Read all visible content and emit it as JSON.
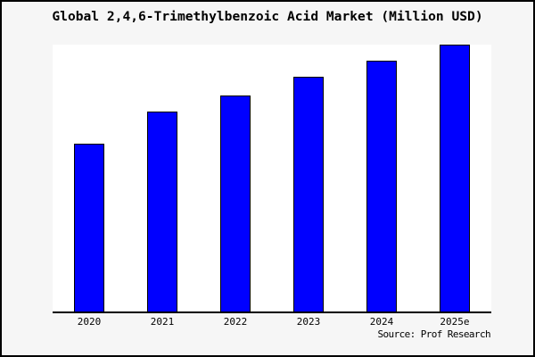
{
  "figure": {
    "background_color": "#f6f6f6",
    "plot_background_color": "#ffffff",
    "border_color": "#000000",
    "text_color": "#000000"
  },
  "chart_data": {
    "type": "bar",
    "title": "Global 2,4,6-Trimethylbenzoic Acid Market (Million USD)",
    "categories": [
      "2020",
      "2021",
      "2022",
      "2023",
      "2024",
      "2025e"
    ],
    "values": [
      63,
      75,
      81,
      88,
      94,
      100
    ],
    "values_note": "no y-axis scale shown in chart; values estimated from bar heights, normalized to 2025e = 100",
    "xlabel": "",
    "ylabel": "",
    "ylim": [
      0,
      100
    ],
    "grid": false,
    "legend_position": "none",
    "y_axis_visible": false,
    "bar_fill_color": "#0000ff",
    "bar_edge_color": "#000000",
    "axis_color": "#000000",
    "source_text": "Source: Prof Research"
  }
}
